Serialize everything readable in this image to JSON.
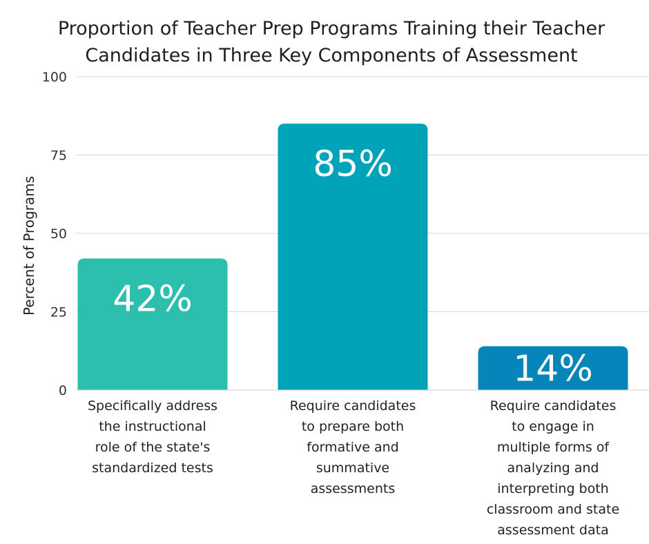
{
  "chart_data": {
    "type": "bar",
    "title_lines": [
      "Proportion of Teacher Prep Programs Training their Teacher",
      "Candidates in Three Key Components of Assessment"
    ],
    "ylabel": "Percent of Programs",
    "xlabel": "",
    "ylim": [
      0,
      100
    ],
    "yticks": [
      0,
      25,
      50,
      75,
      100
    ],
    "grid": true,
    "categories": [
      [
        "Specifically address",
        "the instructional",
        "role of the state's",
        "standardized tests"
      ],
      [
        "Require candidates",
        "to prepare both",
        "formative and",
        "summative",
        "assessments"
      ],
      [
        "Require candidates",
        "to engage in",
        "multiple forms of",
        "analyzing and",
        "interpreting both",
        "classroom and state",
        "assessment data"
      ]
    ],
    "values": [
      42,
      85,
      14
    ],
    "data_labels": [
      "42%",
      "85%",
      "14%"
    ],
    "colors": [
      "#2dbfad",
      "#00a3b8",
      "#0585ba"
    ]
  }
}
